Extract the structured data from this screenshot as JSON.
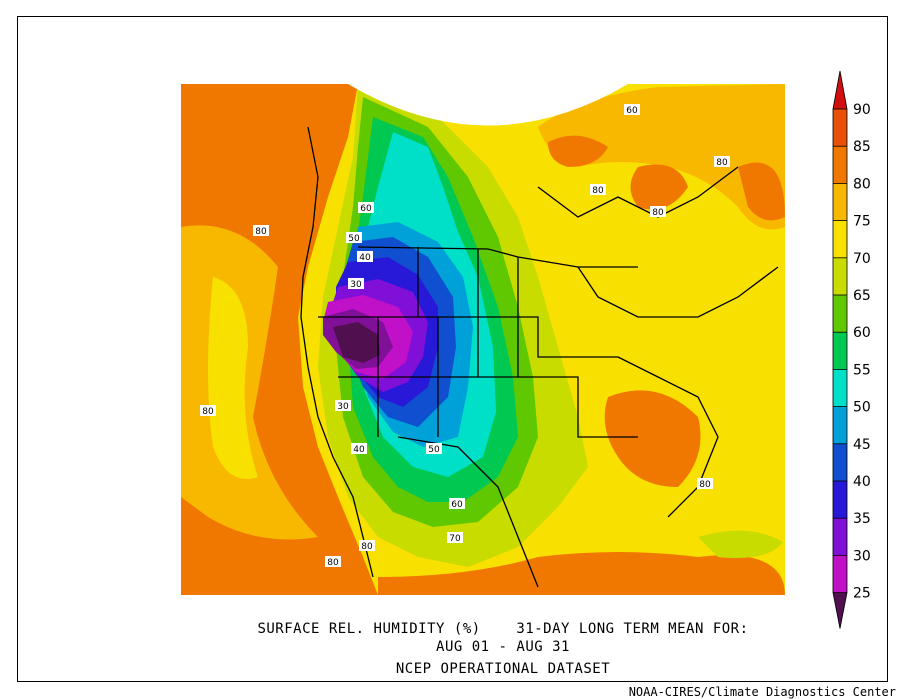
{
  "title": {
    "line1": "SURFACE REL. HUMIDITY (%)    31-DAY LONG TERM MEAN FOR:",
    "line2": "AUG 01 - AUG 31",
    "line3": "NCEP OPERATIONAL DATASET"
  },
  "credit": "NOAA-CIRES/Climate Diagnostics Center",
  "colorbar": {
    "levels": [
      "90",
      "85",
      "80",
      "75",
      "70",
      "65",
      "60",
      "55",
      "50",
      "45",
      "40",
      "35",
      "30",
      "25"
    ],
    "colors": [
      "#e8500a",
      "#f07800",
      "#f8b800",
      "#f8e000",
      "#c8dc00",
      "#60c800",
      "#00c850",
      "#00e0c8",
      "#00a0d8",
      "#1050d0",
      "#2818d8",
      "#8010d8",
      "#c010c8",
      "#801098",
      "#501050"
    ],
    "top_color": "#d01010",
    "bottom_color": "#501050"
  },
  "contour_labels": [
    "60",
    "80",
    "80",
    "80",
    "80",
    "60",
    "50",
    "40",
    "30",
    "30",
    "40",
    "50",
    "60",
    "70",
    "80",
    "80",
    "80"
  ]
}
